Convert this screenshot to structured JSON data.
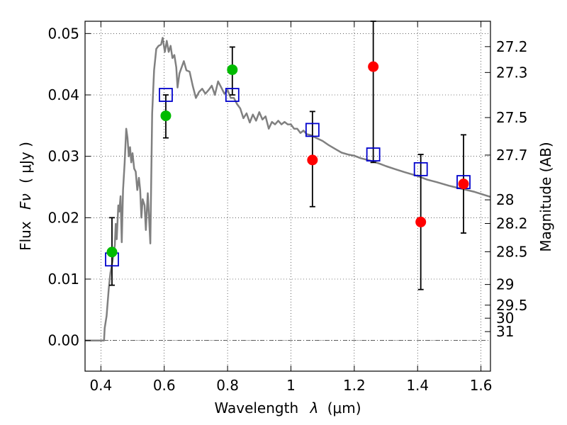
{
  "chart_data": {
    "type": "scatter",
    "xlabel_text": "Wavelength",
    "xlabel_symbol": "λ",
    "xlabel_unit": "(μm)",
    "ylabel_text": "Flux",
    "ylabel_symbol": "Fν",
    "ylabel_unit": "( μJy )",
    "y2label": "Magnitude (AB)",
    "xlim": [
      0.35,
      1.63
    ],
    "ylim": [
      -0.005,
      0.052
    ],
    "grid": true,
    "x_ticks": [
      {
        "value": 0.4,
        "label": "0.4"
      },
      {
        "value": 0.6,
        "label": "0.6"
      },
      {
        "value": 0.8,
        "label": "0.8"
      },
      {
        "value": 1.0,
        "label": "1"
      },
      {
        "value": 1.2,
        "label": "1.2"
      },
      {
        "value": 1.4,
        "label": "1.4"
      },
      {
        "value": 1.6,
        "label": "1.6"
      }
    ],
    "y_ticks": [
      {
        "value": 0.0,
        "label": "0.00"
      },
      {
        "value": 0.01,
        "label": "0.01"
      },
      {
        "value": 0.02,
        "label": "0.02"
      },
      {
        "value": 0.03,
        "label": "0.03"
      },
      {
        "value": 0.04,
        "label": "0.04"
      },
      {
        "value": 0.05,
        "label": "0.05"
      }
    ],
    "mag_ticks": [
      {
        "value": 27.2,
        "label": "27.2"
      },
      {
        "value": 27.3,
        "label": "27.3"
      },
      {
        "value": 27.5,
        "label": "27.5"
      },
      {
        "value": 27.7,
        "label": "27.7"
      },
      {
        "value": 28.0,
        "label": "28"
      },
      {
        "value": 28.2,
        "label": "28.2"
      },
      {
        "value": 28.5,
        "label": "28.5"
      },
      {
        "value": 29.0,
        "label": "29"
      },
      {
        "value": 29.5,
        "label": "29.5"
      },
      {
        "value": 30.0,
        "label": "30"
      },
      {
        "value": 31.0,
        "label": "31"
      }
    ],
    "template_color": "#808080",
    "template": [
      [
        0.35,
        0.0
      ],
      [
        0.41,
        0.0
      ],
      [
        0.412,
        0.002
      ],
      [
        0.418,
        0.004
      ],
      [
        0.425,
        0.0085
      ],
      [
        0.43,
        0.011
      ],
      [
        0.437,
        0.013
      ],
      [
        0.444,
        0.0155
      ],
      [
        0.447,
        0.019
      ],
      [
        0.45,
        0.0165
      ],
      [
        0.455,
        0.022
      ],
      [
        0.458,
        0.021
      ],
      [
        0.462,
        0.0235
      ],
      [
        0.466,
        0.016
      ],
      [
        0.47,
        0.0245
      ],
      [
        0.475,
        0.029
      ],
      [
        0.48,
        0.0345
      ],
      [
        0.484,
        0.033
      ],
      [
        0.488,
        0.03
      ],
      [
        0.492,
        0.0315
      ],
      [
        0.496,
        0.029
      ],
      [
        0.5,
        0.0305
      ],
      [
        0.505,
        0.028
      ],
      [
        0.51,
        0.0275
      ],
      [
        0.515,
        0.0245
      ],
      [
        0.52,
        0.0265
      ],
      [
        0.524,
        0.0245
      ],
      [
        0.528,
        0.02
      ],
      [
        0.532,
        0.023
      ],
      [
        0.538,
        0.022
      ],
      [
        0.542,
        0.018
      ],
      [
        0.548,
        0.024
      ],
      [
        0.552,
        0.02
      ],
      [
        0.556,
        0.0158
      ],
      [
        0.562,
        0.037
      ],
      [
        0.568,
        0.044
      ],
      [
        0.575,
        0.0475
      ],
      [
        0.582,
        0.048
      ],
      [
        0.59,
        0.0482
      ],
      [
        0.595,
        0.0493
      ],
      [
        0.602,
        0.047
      ],
      [
        0.608,
        0.0488
      ],
      [
        0.614,
        0.047
      ],
      [
        0.62,
        0.048
      ],
      [
        0.626,
        0.046
      ],
      [
        0.632,
        0.0465
      ],
      [
        0.638,
        0.0445
      ],
      [
        0.642,
        0.0412
      ],
      [
        0.648,
        0.0435
      ],
      [
        0.655,
        0.0445
      ],
      [
        0.662,
        0.0455
      ],
      [
        0.67,
        0.044
      ],
      [
        0.68,
        0.0438
      ],
      [
        0.69,
        0.0415
      ],
      [
        0.7,
        0.0395
      ],
      [
        0.71,
        0.0405
      ],
      [
        0.72,
        0.041
      ],
      [
        0.73,
        0.0402
      ],
      [
        0.74,
        0.0408
      ],
      [
        0.75,
        0.0415
      ],
      [
        0.76,
        0.04
      ],
      [
        0.77,
        0.0422
      ],
      [
        0.78,
        0.0412
      ],
      [
        0.79,
        0.0402
      ],
      [
        0.8,
        0.0408
      ],
      [
        0.81,
        0.0395
      ],
      [
        0.82,
        0.0395
      ],
      [
        0.83,
        0.0385
      ],
      [
        0.84,
        0.0378
      ],
      [
        0.85,
        0.0362
      ],
      [
        0.86,
        0.037
      ],
      [
        0.87,
        0.0355
      ],
      [
        0.88,
        0.0368
      ],
      [
        0.89,
        0.0358
      ],
      [
        0.9,
        0.0372
      ],
      [
        0.91,
        0.036
      ],
      [
        0.92,
        0.0365
      ],
      [
        0.93,
        0.0345
      ],
      [
        0.94,
        0.0356
      ],
      [
        0.95,
        0.0352
      ],
      [
        0.96,
        0.0358
      ],
      [
        0.97,
        0.0352
      ],
      [
        0.98,
        0.0356
      ],
      [
        0.99,
        0.0352
      ],
      [
        1.0,
        0.0352
      ],
      [
        1.01,
        0.0345
      ],
      [
        1.02,
        0.0345
      ],
      [
        1.03,
        0.0338
      ],
      [
        1.04,
        0.0342
      ],
      [
        1.05,
        0.0336
      ],
      [
        1.06,
        0.0335
      ],
      [
        1.08,
        0.033
      ],
      [
        1.1,
        0.0325
      ],
      [
        1.12,
        0.0318
      ],
      [
        1.14,
        0.0312
      ],
      [
        1.16,
        0.0306
      ],
      [
        1.18,
        0.0303
      ],
      [
        1.2,
        0.0301
      ],
      [
        1.22,
        0.0297
      ],
      [
        1.25,
        0.0293
      ],
      [
        1.28,
        0.0288
      ],
      [
        1.3,
        0.0284
      ],
      [
        1.33,
        0.0279
      ],
      [
        1.36,
        0.0274
      ],
      [
        1.4,
        0.0268
      ],
      [
        1.43,
        0.0262
      ],
      [
        1.46,
        0.0258
      ],
      [
        1.5,
        0.0252
      ],
      [
        1.54,
        0.0247
      ],
      [
        1.58,
        0.0242
      ],
      [
        1.63,
        0.0234
      ]
    ],
    "model_points": {
      "color": "#0000cc",
      "points": [
        {
          "x": 0.435,
          "y": 0.0132
        },
        {
          "x": 0.605,
          "y": 0.04
        },
        {
          "x": 0.815,
          "y": 0.04
        },
        {
          "x": 1.068,
          "y": 0.0343
        },
        {
          "x": 1.26,
          "y": 0.0303
        },
        {
          "x": 1.41,
          "y": 0.0279
        },
        {
          "x": 1.545,
          "y": 0.0258
        }
      ]
    },
    "green_points": {
      "color": "#00bb00",
      "points": [
        {
          "x": 0.435,
          "y": 0.0144,
          "err_lo": 0.009,
          "err_hi": 0.02
        },
        {
          "x": 0.605,
          "y": 0.0366,
          "err_lo": 0.033,
          "err_hi": 0.04
        },
        {
          "x": 0.815,
          "y": 0.0441,
          "err_lo": 0.04,
          "err_hi": 0.0478
        }
      ]
    },
    "red_points": {
      "color": "#ff0000",
      "points": [
        {
          "x": 1.068,
          "y": 0.0294,
          "err_lo": 0.0218,
          "err_hi": 0.0373
        },
        {
          "x": 1.26,
          "y": 0.0446,
          "err_lo": 0.029,
          "err_hi": 0.052
        },
        {
          "x": 1.41,
          "y": 0.0193,
          "err_lo": 0.0083,
          "err_hi": 0.0303
        },
        {
          "x": 1.545,
          "y": 0.0255,
          "err_lo": 0.0175,
          "err_hi": 0.0335
        }
      ]
    }
  }
}
